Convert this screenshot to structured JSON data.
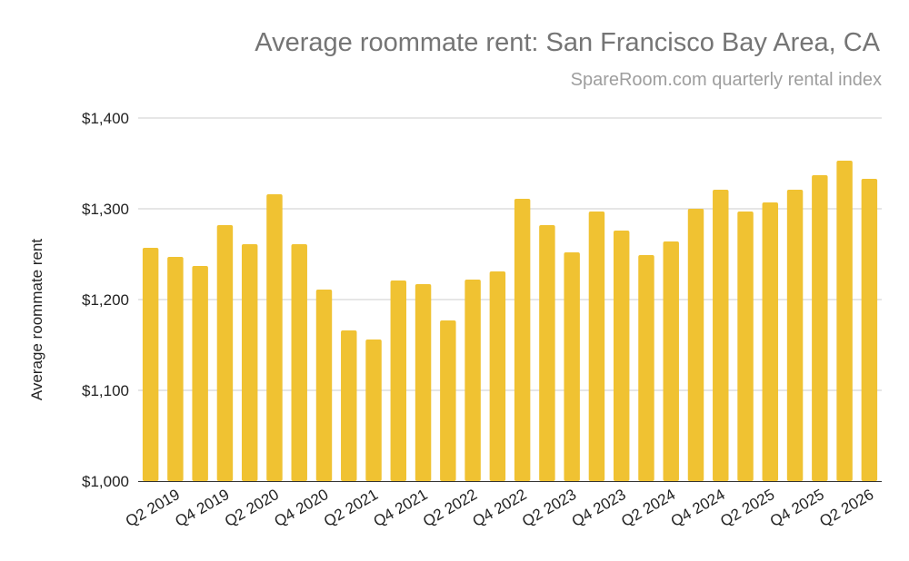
{
  "chart_data": {
    "type": "bar",
    "title": "Average roommate rent: San Francisco Bay Area, CA",
    "subtitle": "SpareRoom.com quarterly rental index",
    "ylabel": "Average roommate rent",
    "xlabel": "",
    "ylim": [
      1000,
      1400
    ],
    "yticks": [
      1000,
      1100,
      1200,
      1300,
      1400
    ],
    "ytick_labels": [
      "$1,000",
      "$1,100",
      "$1,200",
      "$1,300",
      "$1,400"
    ],
    "grid": true,
    "legend": "none",
    "bar_color": "#f0c232",
    "categories": [
      "Q1 2019",
      "Q2 2019",
      "Q3 2019",
      "Q4 2019",
      "Q1 2020",
      "Q2 2020",
      "Q3 2020",
      "Q4 2020",
      "Q1 2021",
      "Q2 2021",
      "Q3 2021",
      "Q4 2021",
      "Q1 2022",
      "Q2 2022",
      "Q3 2022",
      "Q4 2022",
      "Q1 2023",
      "Q2 2023",
      "Q3 2023",
      "Q4 2023",
      "Q1 2024",
      "Q2 2024",
      "Q3 2024",
      "Q4 2024",
      "Q1 2025",
      "Q2 2025",
      "Q3 2025",
      "Q4 2025",
      "Q1 2026",
      "Q2 2026"
    ],
    "visible_tick_labels": [
      "Q2 2019",
      "Q4 2019",
      "Q2 2020",
      "Q4 2020",
      "Q2 2021",
      "Q4 2021",
      "Q2 2022",
      "Q4 2022",
      "Q2 2023",
      "Q4 2023",
      "Q2 2024",
      "Q4 2024",
      "Q2 2025",
      "Q4 2025",
      "Q2 2026"
    ],
    "values": [
      1257,
      1247,
      1237,
      1282,
      1261,
      1316,
      1261,
      1211,
      1166,
      1156,
      1221,
      1217,
      1177,
      1222,
      1231,
      1311,
      1282,
      1252,
      1297,
      1276,
      1249,
      1264,
      1300,
      1321,
      1297,
      1307,
      1321,
      1337,
      1353,
      1333
    ]
  }
}
